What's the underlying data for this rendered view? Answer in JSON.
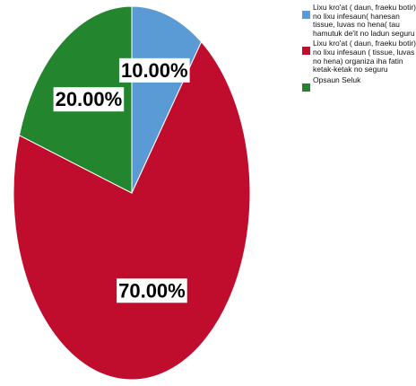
{
  "chart_data": {
    "type": "pie",
    "title": "",
    "slices": [
      {
        "name": "Lixu kro'at ( daun, fraeku botir) no lixu infesaun( hanesan tissue, luvas no hena( tau hamutuk de'it no ladun seguru",
        "value": 10.0,
        "label": "10.00%",
        "color": "#5b9bd5"
      },
      {
        "name": "Lixu kro'at ( daun, fraeku botir) no lixu infesaun ( tissue, luvas no hena) organiza iha fatin ketak-ketak no seguru",
        "value": 70.0,
        "label": "70.00%",
        "color": "#c00d2e"
      },
      {
        "name": "Opsaun Seluk",
        "value": 20.0,
        "label": "20.00%",
        "color": "#23862e"
      }
    ],
    "legend_position": "top-right",
    "start_angle_deg": 0,
    "direction": "clockwise"
  }
}
